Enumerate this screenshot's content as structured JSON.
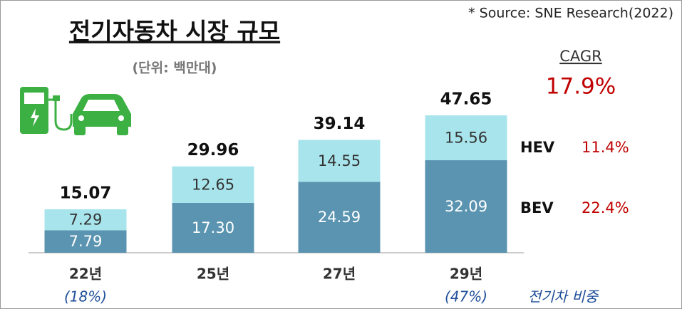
{
  "chart_data": {
    "type": "bar",
    "stacked": true,
    "title": "전기자동차 시장 규모",
    "subtitle": "(단위: 백만대)",
    "source": "* Source: SNE Research(2022)",
    "cagr_title": "CAGR",
    "cagr_total": "17.9%",
    "categories": [
      "22년",
      "25년",
      "27년",
      "29년"
    ],
    "series": [
      {
        "name": "BEV",
        "color": "#5b94b0",
        "cagr": "22.4%",
        "values": [
          7.79,
          17.3,
          24.59,
          32.09
        ],
        "value_labels": [
          "7.79",
          "17.30",
          "24.59",
          "32.09"
        ]
      },
      {
        "name": "HEV",
        "color": "#a8e4ec",
        "cagr": "11.4%",
        "values": [
          7.29,
          12.65,
          14.55,
          15.56
        ]
      }
    ],
    "totals": [
      15.07,
      29.96,
      39.14,
      47.65
    ],
    "share_labels": [
      "(18%)",
      null,
      null,
      "(47%)"
    ],
    "share_caption": "전기차 비중"
  }
}
